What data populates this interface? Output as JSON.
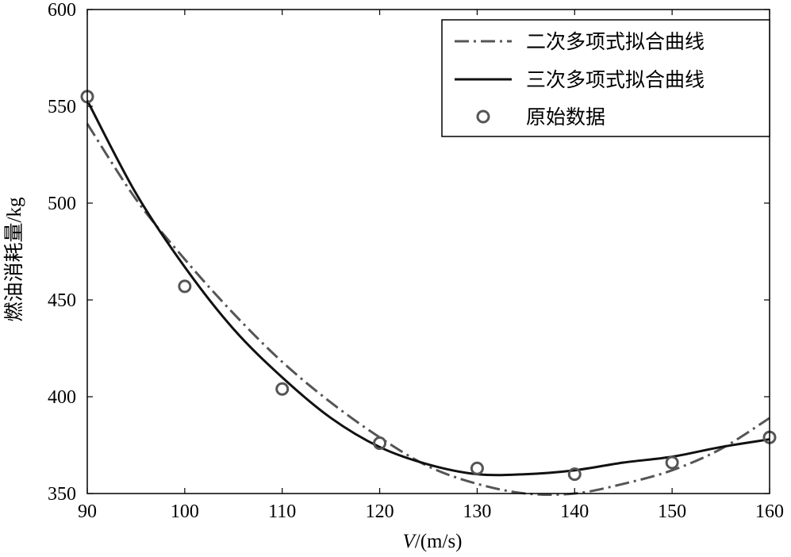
{
  "chart_data": {
    "type": "line",
    "title": "",
    "xlabel": "V/(m/s)",
    "xlabel_italic_part": "V",
    "xlabel_rest": "/(m/s)",
    "ylabel": "燃油消耗量/kg",
    "xlim": [
      90,
      160
    ],
    "ylim": [
      350,
      600
    ],
    "xticks": [
      90,
      100,
      110,
      120,
      130,
      140,
      150,
      160
    ],
    "yticks": [
      350,
      400,
      450,
      500,
      550,
      600
    ],
    "grid": false,
    "legend_position": "top-right",
    "series": [
      {
        "name": "二次多项式拟合曲线",
        "kind": "line",
        "style": "dash-dot",
        "color": "#555555",
        "x": [
          90,
          95,
          100,
          105,
          110,
          115,
          120,
          125,
          130,
          135,
          140,
          145,
          150,
          155,
          160
        ],
        "values": [
          541,
          502,
          471,
          443,
          418,
          397,
          379,
          364,
          355,
          350,
          350,
          355,
          362,
          373,
          389
        ]
      },
      {
        "name": "三次多项式拟合曲线",
        "kind": "line",
        "style": "solid",
        "color": "#111111",
        "x": [
          90,
          95,
          100,
          105,
          110,
          115,
          120,
          125,
          130,
          135,
          140,
          145,
          150,
          155,
          160
        ],
        "values": [
          553,
          505,
          467,
          435,
          410,
          389,
          374,
          365,
          360,
          360,
          362,
          366,
          369,
          374,
          378
        ]
      },
      {
        "name": "原始数据",
        "kind": "scatter",
        "marker": "circle-open",
        "color": "#555555",
        "x": [
          90,
          100,
          110,
          120,
          130,
          140,
          150,
          160
        ],
        "values": [
          555,
          457,
          404,
          376,
          363,
          360,
          366,
          379
        ]
      }
    ]
  }
}
